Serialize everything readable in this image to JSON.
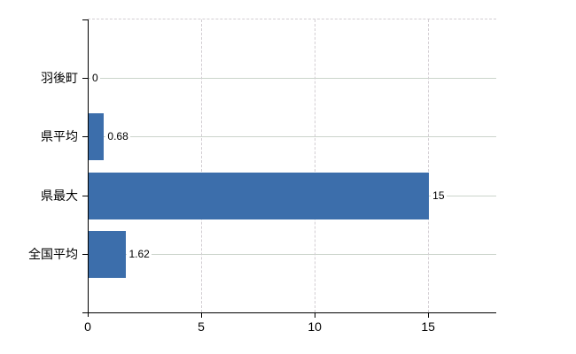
{
  "chart_data": {
    "type": "bar",
    "orientation": "horizontal",
    "title": "",
    "categories": [
      "羽後町",
      "県平均",
      "県最大",
      "全国平均"
    ],
    "values": [
      0,
      0.68,
      15,
      1.62
    ],
    "value_labels": [
      "0",
      "0.68",
      "15",
      "1.62"
    ],
    "x_ticks": [
      0,
      5,
      10,
      15
    ],
    "x_tick_labels": [
      "0",
      "5",
      "10",
      "15"
    ],
    "xlim": [
      0,
      18
    ],
    "grid": true,
    "legend": "none",
    "colors": {
      "bar": "#3c6eab",
      "h_gridline": "#cbd4cb",
      "v_gridline": "#d3ced3",
      "axis": "#000000",
      "background": "#ffffff",
      "label_text": "#000000"
    }
  }
}
